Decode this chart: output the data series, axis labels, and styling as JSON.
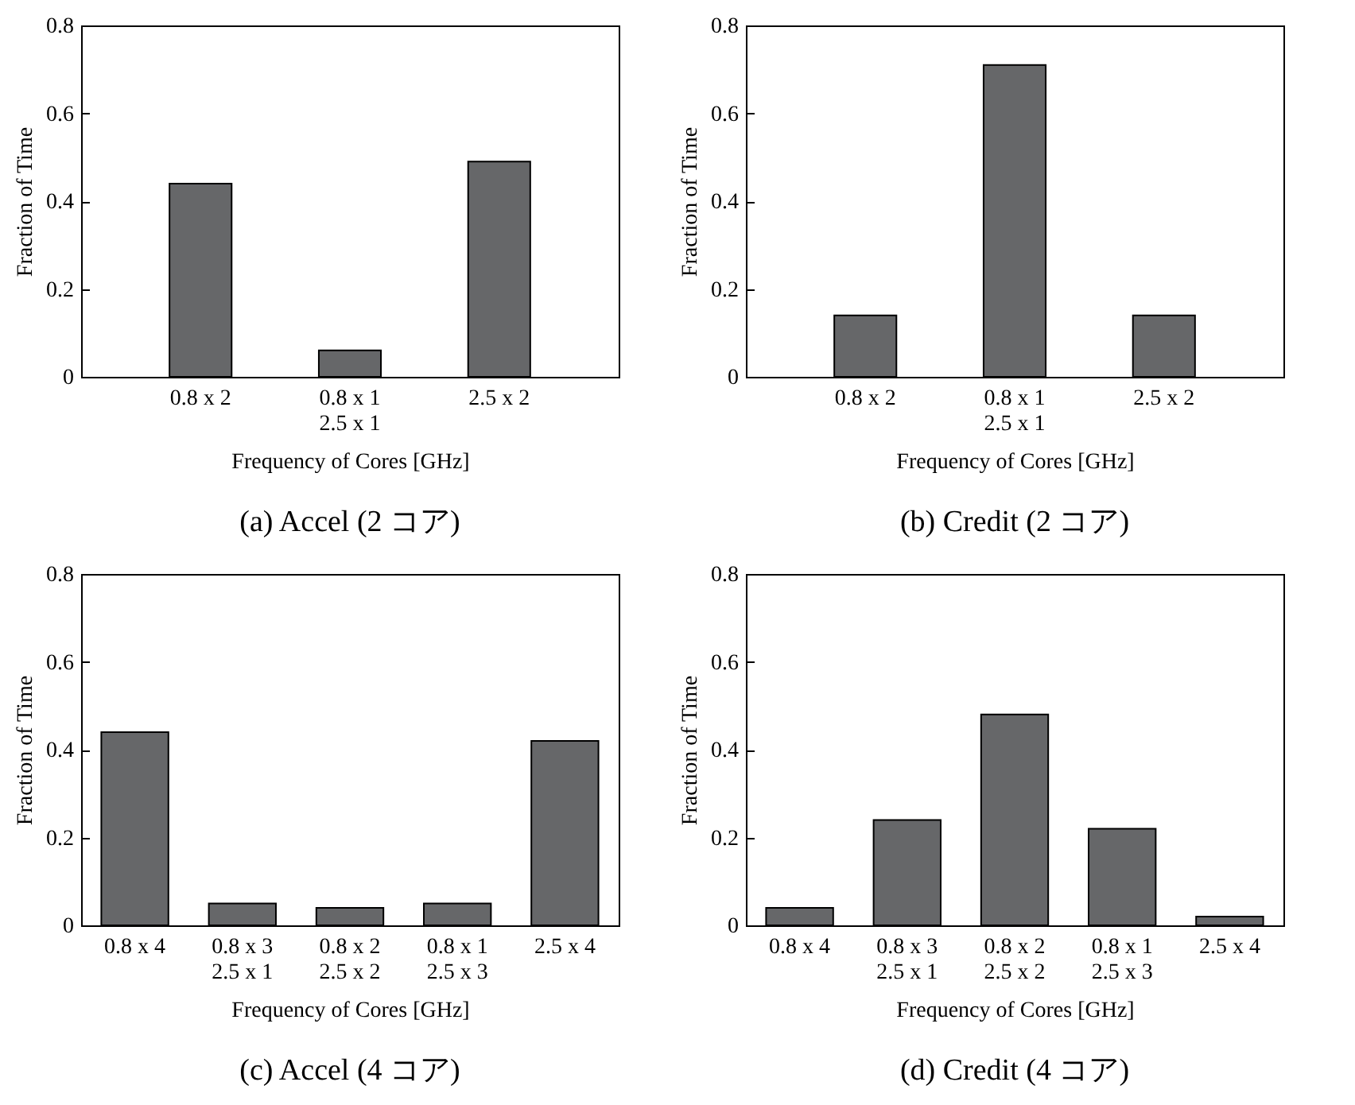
{
  "chart_data": [
    {
      "type": "bar",
      "title": "(a) Accel (2 コア)",
      "xlabel": "Frequency of Cores [GHz]",
      "ylabel": "Fraction of Time",
      "categories": [
        "0.8 x 2",
        "0.8 x 1\n2.5 x 1",
        "2.5 x 2"
      ],
      "values": [
        0.44,
        0.06,
        0.49
      ],
      "color": "#666769",
      "ylim": [
        0,
        0.8
      ],
      "yticks": [
        0,
        0.2,
        0.4,
        0.6,
        0.8
      ]
    },
    {
      "type": "bar",
      "title": "(b) Credit (2 コア)",
      "xlabel": "Frequency of Cores [GHz]",
      "ylabel": "Fraction of Time",
      "categories": [
        "0.8 x 2",
        "0.8 x 1\n2.5 x 1",
        "2.5 x 2"
      ],
      "values": [
        0.14,
        0.71,
        0.14
      ],
      "color": "#666769",
      "ylim": [
        0,
        0.8
      ],
      "yticks": [
        0,
        0.2,
        0.4,
        0.6,
        0.8
      ]
    },
    {
      "type": "bar",
      "title": "(c) Accel (4 コア)",
      "xlabel": "Frequency of Cores [GHz]",
      "ylabel": "Fraction of Time",
      "categories": [
        "0.8 x 4",
        "0.8 x 3\n2.5 x 1",
        "0.8 x 2\n2.5 x 2",
        "0.8 x 1\n2.5 x 3",
        "2.5 x 4"
      ],
      "values": [
        0.44,
        0.05,
        0.04,
        0.05,
        0.42
      ],
      "color": "#666769",
      "ylim": [
        0,
        0.8
      ],
      "yticks": [
        0,
        0.2,
        0.4,
        0.6,
        0.8
      ]
    },
    {
      "type": "bar",
      "title": "(d) Credit (4 コア)",
      "xlabel": "Frequency of Cores [GHz]",
      "ylabel": "Fraction of Time",
      "categories": [
        "0.8 x 4",
        "0.8 x 3\n2.5 x 1",
        "0.8 x 2\n2.5 x 2",
        "0.8 x 1\n2.5 x 3",
        "2.5 x 4"
      ],
      "values": [
        0.04,
        0.24,
        0.48,
        0.22,
        0.02
      ],
      "color": "#666769",
      "ylim": [
        0,
        0.8
      ],
      "yticks": [
        0,
        0.2,
        0.4,
        0.6,
        0.8
      ]
    }
  ]
}
